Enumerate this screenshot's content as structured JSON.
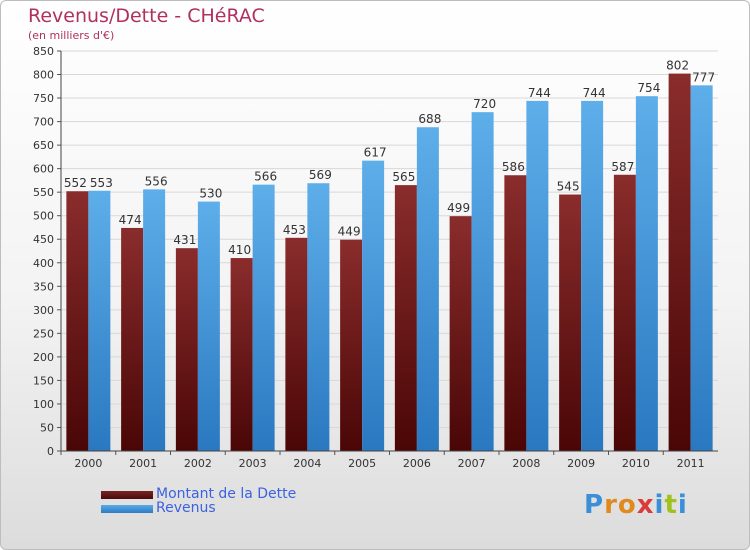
{
  "title": "Revenus/Dette - CHéRAC",
  "subtitle": "(en milliers d'€)",
  "brand": "Proxiti",
  "colors": {
    "dette": "#7a2424",
    "dette_dark": "#4a0a0a",
    "revenus": "#5aaae6",
    "revenus_dark": "#2a7cc4",
    "title": "#b03060",
    "legend_text": "#3b62e0"
  },
  "legend": [
    {
      "label": "Montant de la Dette"
    },
    {
      "label": "Revenus"
    }
  ],
  "chart_data": {
    "type": "bar",
    "title": "Revenus/Dette - CHéRAC",
    "ylabel": "(en milliers d'€)",
    "xlabel": "",
    "ylim": [
      0,
      850
    ],
    "ytick_step": 50,
    "grid": true,
    "legend_position": "bottom-left",
    "categories": [
      "2000",
      "2001",
      "2002",
      "2003",
      "2004",
      "2005",
      "2006",
      "2007",
      "2008",
      "2009",
      "2010",
      "2011"
    ],
    "series": [
      {
        "name": "Montant de la Dette",
        "values": [
          552,
          474,
          431,
          410,
          453,
          449,
          565,
          499,
          586,
          545,
          587,
          802
        ]
      },
      {
        "name": "Revenus",
        "values": [
          553,
          556,
          530,
          566,
          569,
          617,
          688,
          720,
          744,
          744,
          754,
          777
        ]
      }
    ]
  }
}
